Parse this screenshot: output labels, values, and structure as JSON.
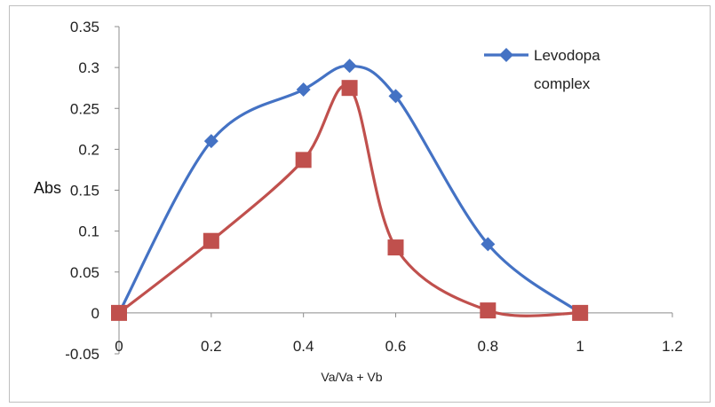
{
  "chart_data": {
    "type": "line",
    "title": "",
    "xlabel": "Va/Va + Vb",
    "ylabel": "Abs",
    "xlim": [
      0,
      1.2
    ],
    "ylim": [
      -0.05,
      0.35
    ],
    "x_ticks": [
      "0",
      "0.2",
      "0.4",
      "0.6",
      "0.8",
      "1",
      "1.2"
    ],
    "y_ticks": [
      "-0.05",
      "0",
      "0.05",
      "0.1",
      "0.15",
      "0.2",
      "0.25",
      "0.3",
      "0.35"
    ],
    "grid": false,
    "legend": {
      "position": "top-right",
      "entries": [
        "Levodopa complex"
      ]
    },
    "series": [
      {
        "name": "Levodopa complex",
        "color": "#4472c4",
        "marker": "diamond",
        "smooth": true,
        "x": [
          0,
          0.2,
          0.4,
          0.5,
          0.6,
          0.8,
          1
        ],
        "y": [
          0,
          0.21,
          0.273,
          0.302,
          0.265,
          0.084,
          0
        ]
      },
      {
        "color": "#c0504d",
        "marker": "square",
        "smooth": true,
        "x": [
          0,
          0.2,
          0.4,
          0.5,
          0.6,
          0.8,
          1
        ],
        "y": [
          0,
          0.088,
          0.187,
          0.275,
          0.08,
          0.003,
          0
        ]
      }
    ]
  }
}
